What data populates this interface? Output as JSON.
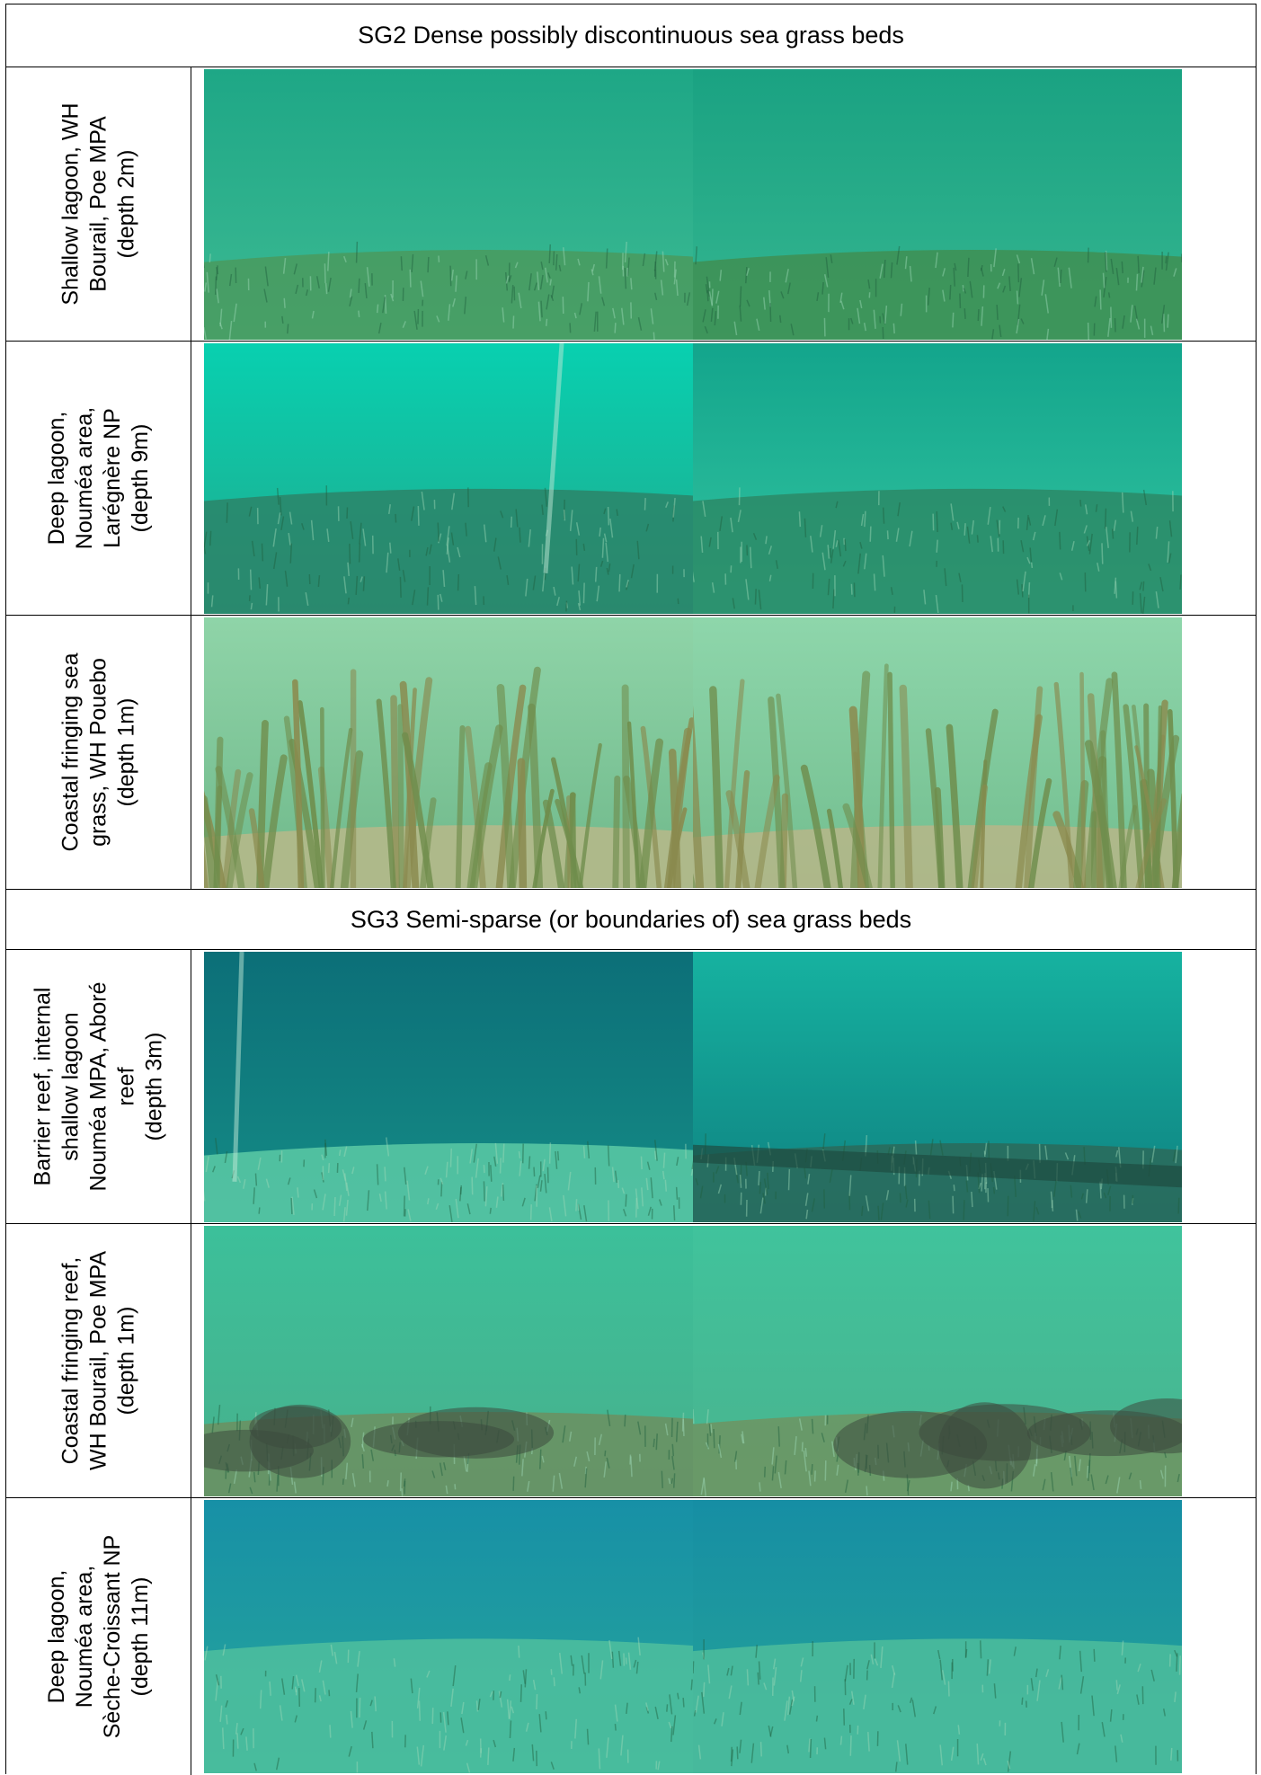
{
  "sections": [
    {
      "title": "SG2 Dense possibly discontinuous sea grass beds",
      "rows": [
        {
          "label_lines": [
            "Shallow lagoon, WH",
            "Bourail, Poe MPA",
            "(depth 2m)"
          ],
          "photos": [
            {
              "scene": "grass-distant-left",
              "water_top": "#1ea786",
              "water_bottom": "#3dba93",
              "floor": "#4a9a5e"
            },
            {
              "scene": "grass-distant-right",
              "water_top": "#1aa282",
              "water_bottom": "#35b690",
              "floor": "#3f8f52"
            }
          ]
        },
        {
          "label_lines": [
            "Deep lagoon,",
            "Nouméa area,",
            "Larégnère NP",
            "(depth 9m)"
          ],
          "photos": [
            {
              "scene": "deep-floor-left",
              "water_top": "#08d0b0",
              "water_bottom": "#21a98c",
              "floor": "#2c8468"
            },
            {
              "scene": "deep-floor-right",
              "water_top": "#13a58c",
              "water_bottom": "#33c4a0",
              "floor": "#2c8a66"
            }
          ]
        },
        {
          "label_lines": [
            "Coastal fringing sea",
            "grass, WH Pouebo",
            "(depth 1m)"
          ],
          "photos": [
            {
              "scene": "tall-grass-left",
              "water_top": "#8fd4a8",
              "water_bottom": "#6fb88a",
              "floor": "#b9b88a"
            },
            {
              "scene": "tall-grass-right",
              "water_top": "#8ed6ab",
              "water_bottom": "#72bd8e",
              "floor": "#b7b688"
            }
          ]
        }
      ]
    },
    {
      "title": "SG3 Semi-sparse (or boundaries of) sea grass beds",
      "rows": [
        {
          "label_lines": [
            "Barrier reef, internal",
            "shallow lagoon",
            "Nouméa MPA, Aboré",
            "reef",
            "(depth 3m)"
          ],
          "photos": [
            {
              "scene": "reef-sand-left",
              "water_top": "#0c6f78",
              "water_bottom": "#158c86",
              "floor": "#5ccaa6"
            },
            {
              "scene": "reef-sand-right",
              "water_top": "#16b2a0",
              "water_bottom": "#0f8080",
              "floor": "#2b6a5a"
            }
          ]
        },
        {
          "label_lines": [
            "Coastal fringing reef,",
            "WH Bourail, Poe MPA",
            "(depth 1m)"
          ],
          "photos": [
            {
              "scene": "coral-grass-left",
              "water_top": "#3cc09a",
              "water_bottom": "#48b08c",
              "floor": "#6c8f60"
            },
            {
              "scene": "coral-grass-right",
              "water_top": "#40c39c",
              "water_bottom": "#4ab38e",
              "floor": "#6e9462"
            }
          ]
        },
        {
          "label_lines": [
            "Deep lagoon,",
            "Nouméa area,",
            "Sèche-Croissant NP",
            "(depth 11m)"
          ],
          "photos": [
            {
              "scene": "blue-sparse-left",
              "water_top": "#1790a6",
              "water_bottom": "#27a69a",
              "floor": "#4fbf9e"
            },
            {
              "scene": "blue-sparse-right",
              "water_top": "#168ea4",
              "water_bottom": "#26a497",
              "floor": "#4dbd9c"
            }
          ]
        }
      ]
    }
  ]
}
